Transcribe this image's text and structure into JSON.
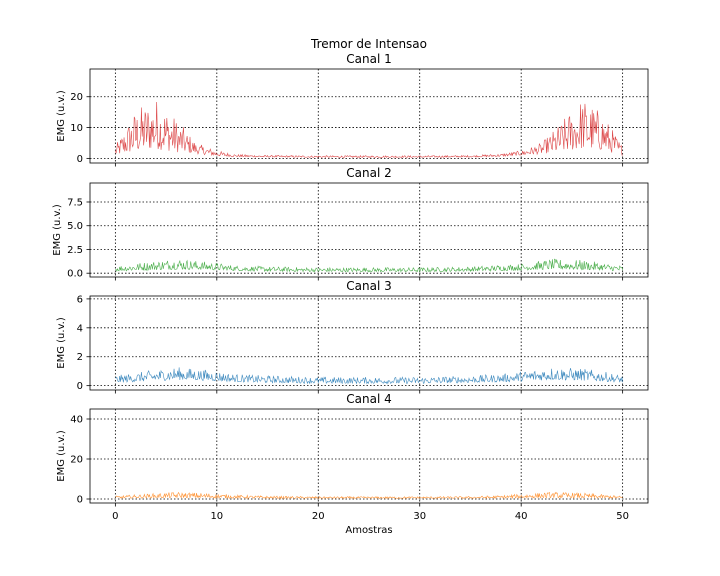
{
  "figure": {
    "title": "Tremor de Intensao"
  },
  "chart_data": [
    {
      "type": "line",
      "title": "Canal 1",
      "xlabel": "",
      "ylabel": "EMG (u.v.)",
      "color": "#d62728",
      "xlim": [
        -2.5,
        52.5
      ],
      "ylim": [
        -1.5,
        29
      ],
      "yticks": [
        0,
        10,
        20
      ],
      "xticks": [
        0,
        10,
        20,
        30,
        40,
        50
      ],
      "grid": true,
      "envelope": {
        "x": [
          0,
          2,
          4,
          6,
          8,
          10,
          12,
          15,
          20,
          25,
          30,
          35,
          38,
          40,
          42,
          44,
          46,
          48,
          50
        ],
        "low": [
          1,
          2,
          3,
          2,
          1.5,
          0.8,
          0.5,
          0.4,
          0.3,
          0.3,
          0.3,
          0.4,
          0.6,
          1,
          1.5,
          2,
          3,
          2.5,
          1
        ],
        "high": [
          4,
          16,
          20,
          13,
          5,
          2.5,
          1.3,
          1,
          0.9,
          0.9,
          0.9,
          1,
          1.5,
          2.5,
          5,
          12,
          20,
          15,
          4
        ]
      }
    },
    {
      "type": "line",
      "title": "Canal 2",
      "xlabel": "",
      "ylabel": "EMG (u.v.)",
      "color": "#2ca02c",
      "xlim": [
        -2.5,
        52.5
      ],
      "ylim": [
        -0.4,
        9.5
      ],
      "yticks": [
        0.0,
        2.5,
        5.0,
        7.5
      ],
      "xticks": [
        0,
        10,
        20,
        30,
        40,
        50
      ],
      "grid": true,
      "envelope": {
        "x": [
          0,
          3,
          6,
          9,
          12,
          15,
          20,
          25,
          30,
          35,
          38,
          40,
          43,
          46,
          48,
          50
        ],
        "low": [
          0.2,
          0.3,
          0.4,
          0.35,
          0.25,
          0.2,
          0.15,
          0.15,
          0.15,
          0.2,
          0.25,
          0.3,
          0.4,
          0.35,
          0.3,
          0.2
        ],
        "high": [
          0.8,
          1.2,
          1.6,
          1.2,
          0.8,
          0.7,
          0.6,
          0.6,
          0.6,
          0.7,
          0.9,
          1.0,
          1.5,
          1.4,
          1.1,
          0.8
        ]
      }
    },
    {
      "type": "line",
      "title": "Canal 3",
      "xlabel": "",
      "ylabel": "EMG (u.v.)",
      "color": "#1f77b4",
      "xlim": [
        -2.5,
        52.5
      ],
      "ylim": [
        -0.3,
        6.2
      ],
      "yticks": [
        0,
        2,
        4,
        6
      ],
      "xticks": [
        0,
        10,
        20,
        30,
        40,
        50
      ],
      "grid": true,
      "envelope": {
        "x": [
          0,
          3,
          6,
          9,
          12,
          15,
          20,
          25,
          30,
          35,
          38,
          40,
          43,
          46,
          48,
          50
        ],
        "low": [
          0.2,
          0.3,
          0.4,
          0.35,
          0.25,
          0.2,
          0.15,
          0.15,
          0.15,
          0.2,
          0.25,
          0.3,
          0.4,
          0.35,
          0.3,
          0.2
        ],
        "high": [
          0.7,
          1.0,
          1.3,
          1.1,
          0.8,
          0.7,
          0.6,
          0.6,
          0.6,
          0.7,
          0.8,
          1.0,
          1.3,
          1.2,
          1.0,
          0.7
        ]
      }
    },
    {
      "type": "line",
      "title": "Canal 4",
      "xlabel": "Amostras",
      "ylabel": "EMG (u.v.)",
      "color": "#ff7f0e",
      "xlim": [
        -2.5,
        52.5
      ],
      "ylim": [
        -2,
        45
      ],
      "yticks": [
        0,
        20,
        40
      ],
      "xticks": [
        0,
        10,
        20,
        30,
        40,
        50
      ],
      "grid": true,
      "envelope": {
        "x": [
          0,
          3,
          6,
          9,
          12,
          15,
          20,
          25,
          30,
          35,
          38,
          40,
          43,
          46,
          48,
          50
        ],
        "low": [
          0.3,
          0.5,
          0.6,
          0.5,
          0.4,
          0.3,
          0.3,
          0.3,
          0.3,
          0.3,
          0.4,
          0.5,
          0.6,
          0.5,
          0.4,
          0.3
        ],
        "high": [
          1.5,
          2.5,
          3.5,
          3,
          2,
          1.5,
          1.2,
          1.2,
          1.2,
          1.3,
          1.8,
          2.5,
          3.5,
          3,
          2.2,
          1.5
        ]
      }
    }
  ]
}
